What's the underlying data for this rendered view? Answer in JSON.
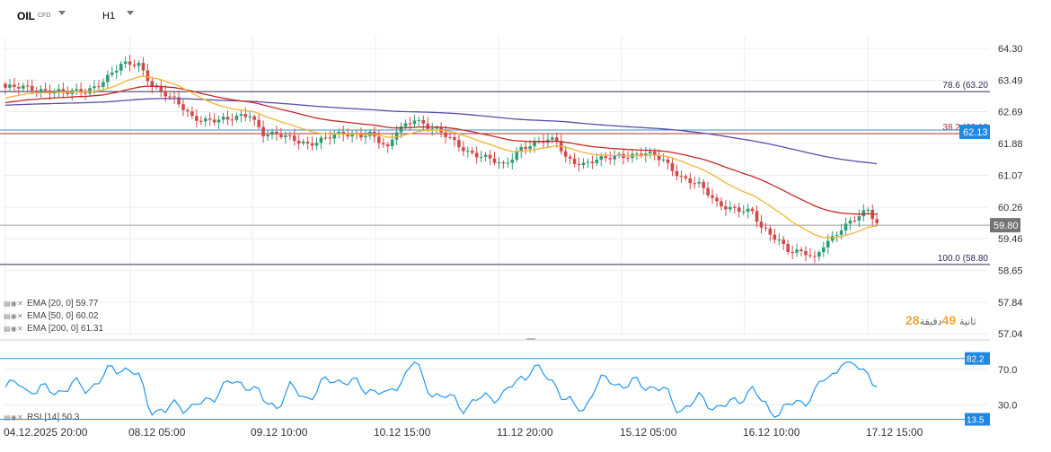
{
  "header": {
    "symbol": "OIL",
    "instrument_type": "CFD",
    "timeframe": "H1"
  },
  "colors": {
    "bull": "#2e9c77",
    "bear": "#d24a47",
    "ema20": "#f5b335",
    "ema50": "#c62828",
    "ema200": "#5c4caa",
    "rsi": "#2196f3",
    "accent": "#1e88e5",
    "grid": "#ececec"
  },
  "chart_data": [
    {
      "type": "candlestick",
      "name": "price",
      "title": "OIL",
      "y_ticks": [
        "64.30",
        "63.49",
        "62.69",
        "61.88",
        "61.07",
        "60.26",
        "59.46",
        "58.65",
        "57.84",
        "57.04"
      ],
      "ylim": [
        57.04,
        64.3
      ],
      "x_ticks": [
        "04.12.2025 20:00",
        "08.12 05:00",
        "09.12 10:00",
        "10.12 15:00",
        "11.12 20:00",
        "15.12 05:00",
        "16.12 10:00",
        "17.12 15:00"
      ],
      "horizontal_lines": [
        {
          "label": "78.6 (63.20",
          "value": 63.2
        },
        {
          "label": "38.2 (62.13",
          "value": 62.13
        },
        {
          "label": "100.0 (58.80",
          "value": 58.8
        }
      ],
      "current_price": "59.80",
      "fib_tag": "62.13",
      "key_points": [
        [
          0,
          63.3
        ],
        [
          10,
          63.25
        ],
        [
          14,
          63.15
        ],
        [
          18,
          63.2
        ],
        [
          22,
          63.5
        ],
        [
          26,
          63.85
        ],
        [
          30,
          63.9
        ],
        [
          33,
          63.4
        ],
        [
          38,
          62.95
        ],
        [
          42,
          62.55
        ],
        [
          50,
          62.45
        ],
        [
          55,
          62.65
        ],
        [
          58,
          62.15
        ],
        [
          64,
          62.0
        ],
        [
          68,
          61.9
        ],
        [
          76,
          62.1
        ],
        [
          82,
          62.15
        ],
        [
          86,
          61.7
        ],
        [
          88,
          62.2
        ],
        [
          92,
          62.55
        ],
        [
          95,
          62.3
        ],
        [
          100,
          62.0
        ],
        [
          104,
          61.7
        ],
        [
          108,
          61.5
        ],
        [
          112,
          61.3
        ],
        [
          116,
          61.8
        ],
        [
          120,
          61.9
        ],
        [
          124,
          61.95
        ],
        [
          126,
          61.55
        ],
        [
          130,
          61.35
        ],
        [
          134,
          61.45
        ],
        [
          138,
          61.6
        ],
        [
          144,
          61.6
        ],
        [
          148,
          61.45
        ],
        [
          152,
          61.05
        ],
        [
          156,
          60.8
        ],
        [
          160,
          60.35
        ],
        [
          164,
          60.25
        ],
        [
          168,
          60.1
        ],
        [
          170,
          59.7
        ],
        [
          174,
          59.45
        ],
        [
          176,
          59.2
        ],
        [
          180,
          59.05
        ],
        [
          182,
          58.9
        ],
        [
          184,
          59.3
        ],
        [
          188,
          59.75
        ],
        [
          192,
          60.0
        ],
        [
          194,
          60.15
        ],
        [
          196,
          59.85
        ]
      ],
      "ema": [
        {
          "name": "EMA [20, 0]",
          "value": "59.77",
          "period": 20
        },
        {
          "name": "EMA [50, 0]",
          "value": "60.02",
          "period": 50
        },
        {
          "name": "EMA [200, 0]",
          "value": "61.31",
          "period": 200
        }
      ]
    },
    {
      "type": "line",
      "name": "RSI [14]",
      "value": "50.3",
      "y_ticks": [
        "70.0",
        "30.0"
      ],
      "levels": [
        {
          "label": "82.2",
          "value": 82.2
        },
        {
          "label": "13.5",
          "value": 13.5
        }
      ],
      "ylim": [
        10,
        90
      ]
    }
  ],
  "legend": {
    "ema20": "EMA [20, 0] 59.77",
    "ema50": "EMA [50, 0] 60.02",
    "ema200": "EMA [200, 0] 61.31",
    "rsi": "RSI [14] 50.3"
  },
  "countdown": {
    "minutes": "49",
    "seconds": "28",
    "minutes_label": "دقيقة",
    "seconds_label": "ثانية"
  },
  "icons": {
    "legend_controls": "settings-eye-close-icon"
  }
}
